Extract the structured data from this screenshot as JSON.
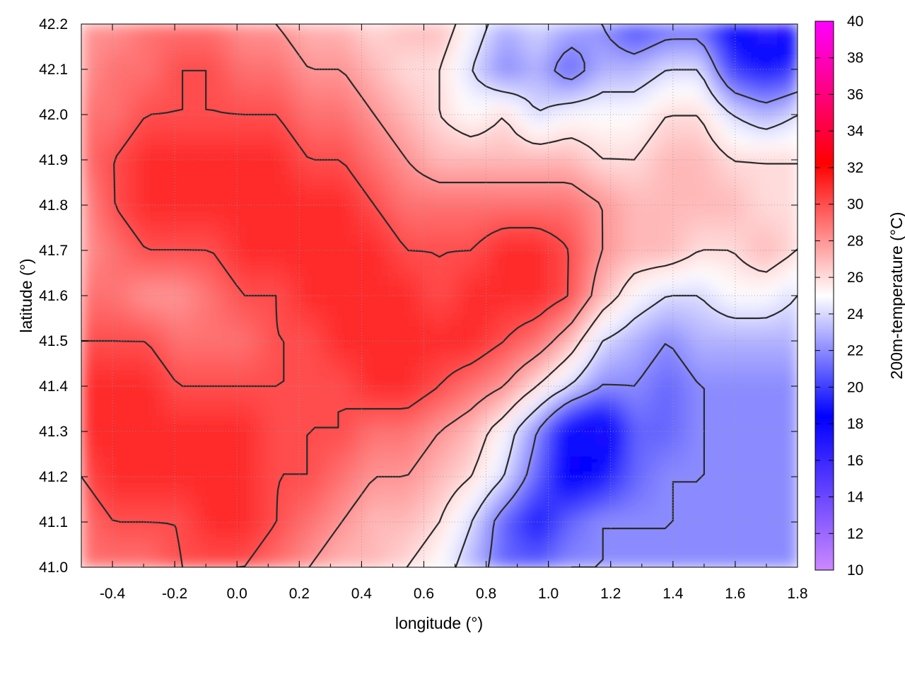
{
  "chart_data": {
    "type": "heatmap",
    "xlabel": "longitude (°)",
    "ylabel": "latitude (°)",
    "colorbar_label": "200m-temperature (°C)",
    "xlim": [
      -0.5,
      1.8
    ],
    "ylim": [
      41.0,
      42.2
    ],
    "x_ticks": [
      "-0.4",
      "-0.2",
      "0.0",
      "0.2",
      "0.4",
      "0.6",
      "0.8",
      "1.0",
      "1.2",
      "1.4",
      "1.6",
      "1.8"
    ],
    "y_ticks": [
      "41.0",
      "41.1",
      "41.2",
      "41.3",
      "41.4",
      "41.5",
      "41.6",
      "41.7",
      "41.8",
      "41.9",
      "42.0",
      "42.1",
      "42.2"
    ],
    "colorbar_range": [
      10,
      40
    ],
    "colorbar_ticks": [
      "10",
      "12",
      "14",
      "16",
      "18",
      "20",
      "22",
      "24",
      "26",
      "28",
      "30",
      "32",
      "34",
      "36",
      "38",
      "40"
    ],
    "grid": true,
    "contours": true,
    "colormap": [
      "#cc88ff",
      "#0000ff",
      "#ffffff",
      "#ff0000",
      "#ff00ff"
    ],
    "temperature_field": [
      [
        28,
        28,
        29,
        29,
        29,
        28,
        28,
        27,
        27,
        26,
        27,
        27,
        25,
        23,
        24,
        23,
        22,
        20,
        21,
        21,
        18,
        16,
        17
      ],
      [
        28,
        29,
        29,
        30,
        30,
        29,
        29,
        28,
        28,
        27,
        26,
        26,
        24,
        22,
        23,
        21,
        23,
        23,
        24,
        24,
        20,
        19,
        20
      ],
      [
        29,
        29,
        30,
        30,
        30,
        30,
        30,
        29,
        29,
        28,
        27,
        26,
        25,
        26,
        24,
        25,
        25,
        25,
        26,
        26,
        24,
        23,
        24
      ],
      [
        29,
        30,
        31,
        31,
        31,
        31,
        31,
        30,
        30,
        29,
        28,
        27,
        27,
        27,
        27,
        27,
        26,
        26,
        27,
        27,
        26,
        26,
        26
      ],
      [
        28,
        30,
        31,
        31,
        31,
        31,
        31,
        31,
        31,
        30,
        29,
        29,
        29,
        29,
        29,
        29,
        28,
        27,
        27,
        27,
        27,
        26,
        26
      ],
      [
        28,
        29,
        30,
        30,
        30,
        31,
        31,
        31,
        31,
        31,
        30,
        30,
        30,
        31,
        31,
        30,
        28,
        27,
        27,
        26,
        26,
        27,
        26
      ],
      [
        29,
        29,
        28,
        28,
        29,
        30,
        30,
        31,
        31,
        31,
        31,
        30,
        31,
        31,
        31,
        30,
        27,
        25,
        24,
        24,
        25,
        25,
        24
      ],
      [
        30,
        30,
        30,
        29,
        29,
        29,
        30,
        30,
        31,
        31,
        31,
        31,
        31,
        30,
        29,
        27,
        24,
        23,
        22,
        23,
        23,
        23,
        23
      ],
      [
        31,
        31,
        31,
        30,
        30,
        30,
        30,
        30,
        30,
        31,
        31,
        30,
        29,
        28,
        26,
        24,
        22,
        22,
        21,
        22,
        22,
        22,
        22
      ],
      [
        31,
        31,
        31,
        31,
        31,
        31,
        30,
        30,
        30,
        29,
        29,
        28,
        27,
        25,
        22,
        18,
        17,
        21,
        21,
        22,
        22,
        22,
        22
      ],
      [
        30,
        31,
        31,
        31,
        31,
        31,
        30,
        30,
        29,
        28,
        28,
        27,
        26,
        24,
        21,
        18,
        19,
        21,
        22,
        22,
        22,
        22,
        22
      ],
      [
        29,
        30,
        30,
        30,
        31,
        31,
        30,
        29,
        28,
        27,
        27,
        26,
        24,
        21,
        19,
        21,
        22,
        22,
        22,
        22,
        22,
        22,
        22
      ],
      [
        29,
        29,
        29,
        30,
        30,
        30,
        29,
        28,
        27,
        27,
        26,
        25,
        23,
        21,
        21,
        22,
        22,
        22,
        22,
        22,
        22,
        22,
        22
      ]
    ]
  }
}
